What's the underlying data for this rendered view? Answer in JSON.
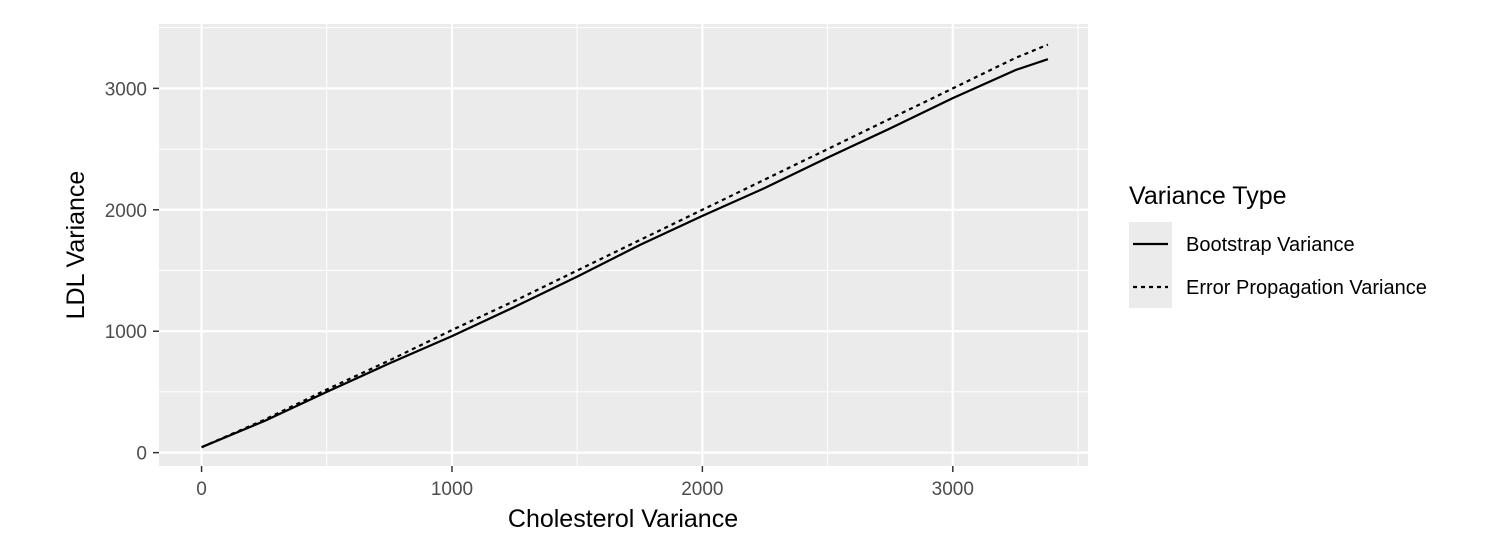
{
  "chart_data": {
    "type": "line",
    "xlabel": "Cholesterol Variance",
    "ylabel": "LDL Variance",
    "xlim": [
      -170,
      3540
    ],
    "ylim": [
      -110,
      3530
    ],
    "x_ticks": [
      0,
      1000,
      2000,
      3000
    ],
    "x_tick_labels": [
      "0",
      "1000",
      "2000",
      "3000"
    ],
    "y_ticks": [
      0,
      1000,
      2000,
      3000
    ],
    "y_tick_labels": [
      "0",
      "1000",
      "2000",
      "3000"
    ],
    "grid": true,
    "legend": {
      "title": "Variance Type",
      "position": "right",
      "entries": [
        {
          "label": "Bootstrap Variance",
          "linestyle": "solid"
        },
        {
          "label": "Error Propagation Variance",
          "linestyle": "dashed"
        }
      ]
    },
    "series": [
      {
        "name": "Bootstrap Variance",
        "linestyle": "solid",
        "x": [
          0,
          250,
          500,
          750,
          1000,
          1250,
          1500,
          1750,
          2000,
          2250,
          2500,
          2750,
          3000,
          3250,
          3380
        ],
        "y": [
          45,
          260,
          500,
          735,
          960,
          1200,
          1450,
          1710,
          1950,
          2180,
          2430,
          2670,
          2920,
          3150,
          3240
        ]
      },
      {
        "name": "Error Propagation Variance",
        "linestyle": "dashed",
        "x": [
          0,
          250,
          500,
          750,
          1000,
          1250,
          1500,
          1750,
          2000,
          2250,
          2500,
          2750,
          3000,
          3250,
          3380
        ],
        "y": [
          45,
          270,
          520,
          760,
          1010,
          1250,
          1500,
          1750,
          2000,
          2250,
          2500,
          2750,
          3000,
          3250,
          3360
        ]
      }
    ]
  },
  "colors": {
    "panel_bg": "#ebebeb",
    "grid_major": "#ffffff",
    "tick_text": "#4d4d4d",
    "line": "#000000"
  }
}
